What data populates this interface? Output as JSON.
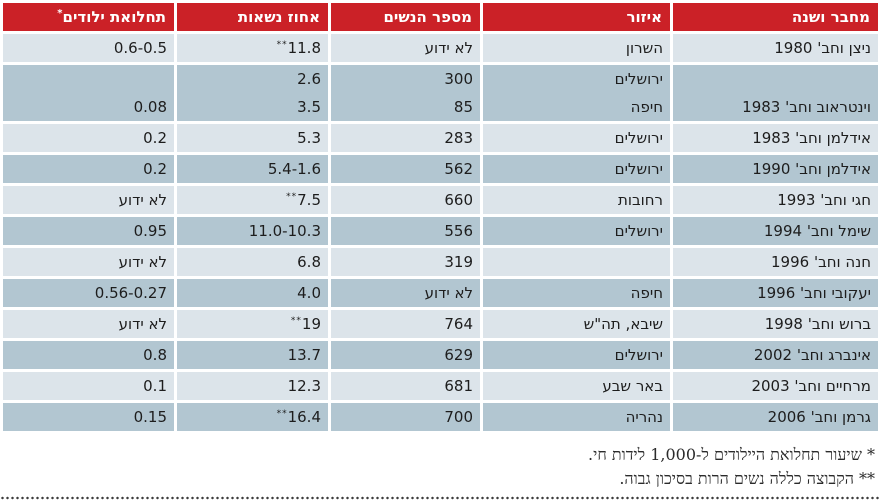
{
  "table": {
    "columns": [
      {
        "key": "author",
        "label": "מחבר ושנה",
        "star": false
      },
      {
        "key": "region",
        "label": "איזור",
        "star": false
      },
      {
        "key": "women",
        "label": "מספר הנשים",
        "star": false
      },
      {
        "key": "percent",
        "label": "אחוז נשאות",
        "star": false
      },
      {
        "key": "morbidity",
        "label": "תחלואת ילודים",
        "star": true
      }
    ],
    "rows": [
      {
        "author": "ניצן וחב' 1980",
        "lines": [
          {
            "region": "השרון",
            "women": "לא ידוע",
            "percent": "11.8",
            "percent_star": true,
            "morbidity": "0.6-0.5"
          }
        ]
      },
      {
        "author": "וינטראוב וחב' 1983",
        "lines": [
          {
            "region": "ירושלים",
            "women": "300",
            "percent": "2.6",
            "morbidity": ""
          },
          {
            "region": "חיפה",
            "women": "85",
            "percent": "3.5",
            "morbidity": "0.08"
          }
        ]
      },
      {
        "author": "אידלמן וחב' 1983",
        "lines": [
          {
            "region": "ירושלים",
            "women": "283",
            "percent": "5.3",
            "morbidity": "0.2"
          }
        ]
      },
      {
        "author": "אידלמן וחב' 1990",
        "lines": [
          {
            "region": "ירושלים",
            "women": "562",
            "percent": "5.4-1.6",
            "morbidity": "0.2"
          }
        ]
      },
      {
        "author": "חגי וחב' 1993",
        "lines": [
          {
            "region": "רחובות",
            "women": "660",
            "percent": "7.5",
            "percent_star": true,
            "morbidity": "לא ידוע"
          }
        ]
      },
      {
        "author": "שימל וחב' 1994",
        "lines": [
          {
            "region": "ירושלים",
            "women": "556",
            "percent": "11.0-10.3",
            "morbidity": "0.95"
          }
        ]
      },
      {
        "author": "חנה וחב' 1996",
        "lines": [
          {
            "region": "",
            "women": "319",
            "percent": "6.8",
            "morbidity": "לא ידוע"
          }
        ]
      },
      {
        "author": "יעקובי וחב' 1996",
        "lines": [
          {
            "region": "חיפה",
            "women": "לא ידוע",
            "percent": "4.0",
            "morbidity": "0.56-0.27"
          }
        ]
      },
      {
        "author": "ברוש וחב' 1998",
        "lines": [
          {
            "region": "שיבא, תה\"ש",
            "women": "764",
            "percent": "19",
            "percent_star": true,
            "morbidity": "לא ידוע"
          }
        ]
      },
      {
        "author": "אינברג וחב' 2002",
        "lines": [
          {
            "region": "ירושלים",
            "women": "629",
            "percent": "13.7",
            "morbidity": "0.8"
          }
        ]
      },
      {
        "author": "מרחיים וחב' 2003",
        "lines": [
          {
            "region": "באר שבע",
            "women": "681",
            "percent": "12.3",
            "morbidity": "0.1"
          }
        ]
      },
      {
        "author": "גרמן וחב' 2006",
        "lines": [
          {
            "region": "נהריה",
            "women": "700",
            "percent": "16.4",
            "percent_star": true,
            "morbidity": "0.15"
          }
        ]
      }
    ]
  },
  "footnotes": [
    "* שיעור תחלואת היילודים ל-1,000 לידות חי.",
    "** הקבוצה כללה נשים הרות בסיכון גבוה."
  ],
  "colors": {
    "header_bg": "#cb2127",
    "row_light": "#dce4ea",
    "row_dark": "#b2c6d1",
    "text": "#1d1d1d"
  }
}
